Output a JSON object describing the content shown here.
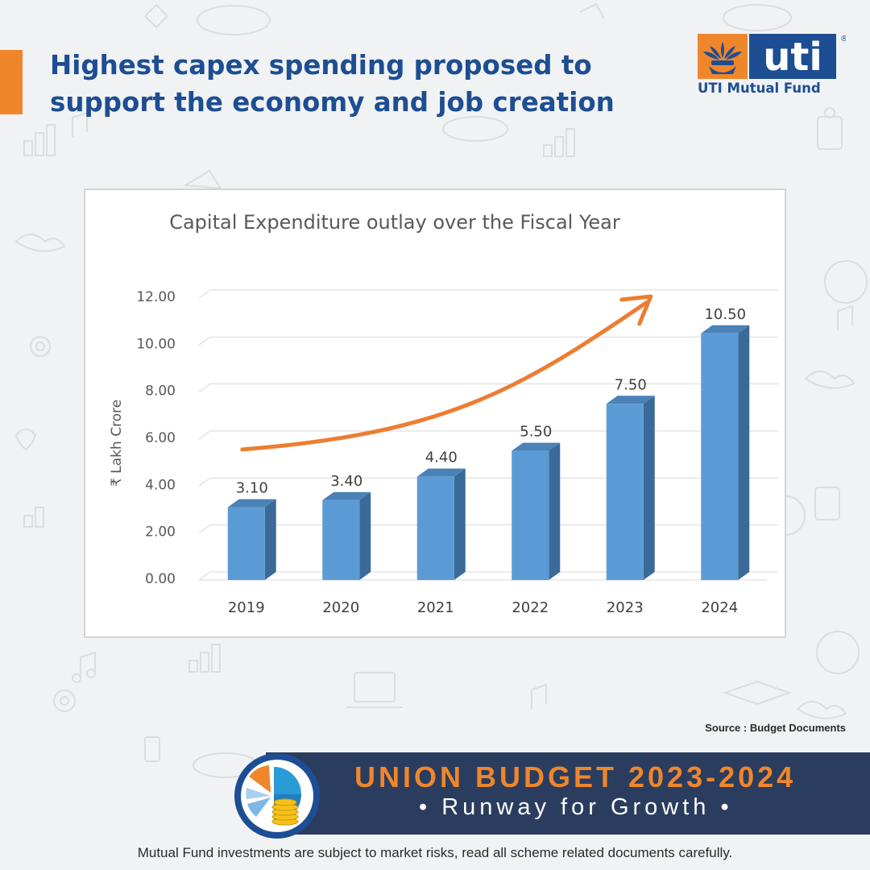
{
  "headline": {
    "line1": "Highest capex spending proposed to",
    "line2": "support the economy and job creation"
  },
  "brand": {
    "logo_text": "uti",
    "name": "UTI Mutual Fund",
    "registered_mark": "®",
    "color_orange": "#f0862b",
    "color_blue": "#1d4e93"
  },
  "chart_data": {
    "type": "bar",
    "title": "Capital Expenditure outlay over the Fiscal Year",
    "ylabel": "₹ Lakh Crore",
    "xlabel": "",
    "categories": [
      "2019",
      "2020",
      "2021",
      "2022",
      "2023",
      "2024"
    ],
    "values": [
      3.1,
      3.4,
      4.4,
      5.5,
      7.5,
      10.5
    ],
    "data_labels": [
      "3.10",
      "3.40",
      "4.40",
      "5.50",
      "7.50",
      "10.50"
    ],
    "ylim": [
      0,
      12
    ],
    "yticks": [
      "0.00",
      "2.00",
      "4.00",
      "6.00",
      "8.00",
      "10.00",
      "12.00"
    ],
    "grid": true,
    "style": "3d-column",
    "bar_color": "#5b9bd5",
    "trend_arrow_color": "#ed7d31"
  },
  "source": "Source : Budget Documents",
  "banner": {
    "title": "UNION BUDGET 2023-2024",
    "subtitle": "• Runway for Growth •"
  },
  "disclaimer": "Mutual Fund investments are subject to market risks, read all scheme related documents carefully."
}
